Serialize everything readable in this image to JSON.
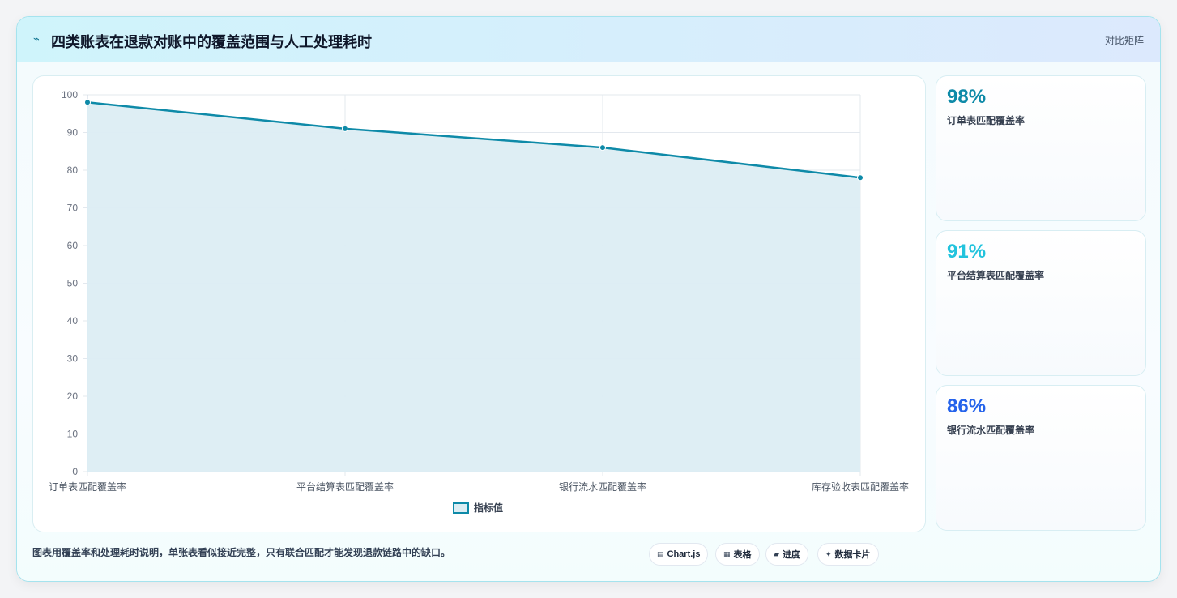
{
  "header": {
    "title": "四类账表在退款对账中的覆盖范围与人工处理耗时",
    "tag": "对比矩阵"
  },
  "chart_data": {
    "type": "area",
    "categories": [
      "订单表匹配覆盖率",
      "平台结算表匹配覆盖率",
      "银行流水匹配覆盖率",
      "库存验收表匹配覆盖率"
    ],
    "series": [
      {
        "name": "指标值",
        "values": [
          98,
          91,
          86,
          78
        ],
        "color": "#0e8aa8",
        "fill": "#dcedf3"
      }
    ],
    "y_ticks": [
      "0",
      "10",
      "20",
      "30",
      "40",
      "50",
      "60",
      "70",
      "80",
      "90",
      "100"
    ],
    "ylim": [
      0,
      100
    ],
    "grid": true,
    "legend": "bottom"
  },
  "kpis": [
    {
      "value": "98%",
      "label": "订单表匹配覆盖率",
      "color": "#0e8aa8"
    },
    {
      "value": "91%",
      "label": "平台结算表匹配覆盖率",
      "color": "#22c3dd"
    },
    {
      "value": "86%",
      "label": "银行流水匹配覆盖率",
      "color": "#2563eb"
    }
  ],
  "footer": {
    "note": "图表用覆盖率和处理耗时说明，单张表看似接近完整，只有联合匹配才能发现退款链路中的缺口。",
    "chips": [
      {
        "icon": "chart-icon",
        "glyph": "▤",
        "label": "Chart.js"
      },
      {
        "icon": "table-icon",
        "glyph": "▦",
        "label": "表格"
      },
      {
        "icon": "progress-icon",
        "glyph": "▰",
        "label": "进度"
      },
      {
        "icon": "card-icon",
        "glyph": "✦",
        "label": "数据卡片"
      }
    ]
  }
}
